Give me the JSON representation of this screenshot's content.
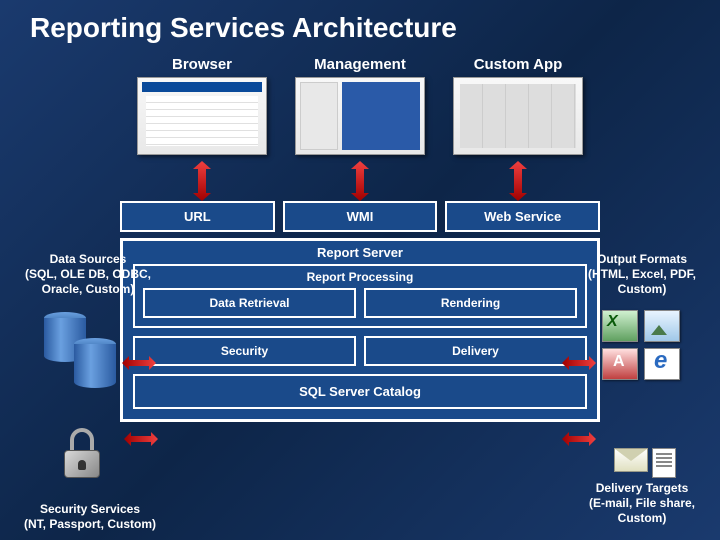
{
  "title": "Reporting Services Architecture",
  "top": {
    "browser": "Browser",
    "management": "Management",
    "custom": "Custom App"
  },
  "interfaces": {
    "url": "URL",
    "wmi": "WMI",
    "web": "Web Service"
  },
  "server": {
    "label": "Report Server",
    "processing": "Report Processing",
    "retrieval": "Data Retrieval",
    "rendering": "Rendering",
    "security": "Security",
    "delivery": "Delivery",
    "catalog": "SQL Server Catalog"
  },
  "left": {
    "datasources": "Data Sources\n(SQL, OLE DB, ODBC, Oracle, Custom)",
    "security": "Security Services\n(NT, Passport, Custom)"
  },
  "right": {
    "formats": "Output Formats\n(HTML, Excel, PDF, Custom)",
    "targets": "Delivery Targets\n(E-mail, File share, Custom)"
  },
  "style": {
    "arrow_gradient_top": "#f04040",
    "arrow_gradient_bottom": "#a00000",
    "box_border": "#ffffff",
    "box_fill": "#1a4a8a"
  }
}
